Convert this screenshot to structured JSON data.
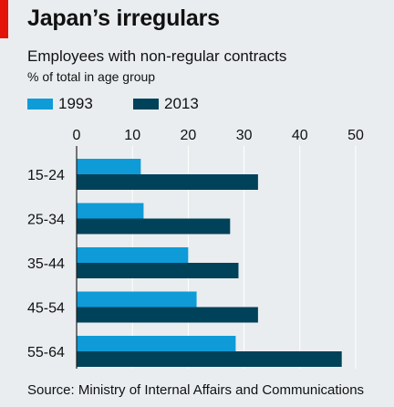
{
  "header": {
    "title": "Japan’s irregulars",
    "subtitle": "Employees with non-regular contracts",
    "unit": "% of total in age group"
  },
  "colors": {
    "accent_red": "#e3120b",
    "series_1993": "#0f9bd7",
    "series_2013": "#004259",
    "background": "#e9edf0",
    "gridline": "#ffffff"
  },
  "chart_data": {
    "type": "bar",
    "orientation": "horizontal",
    "categories": [
      "15-24",
      "25-34",
      "35-44",
      "45-54",
      "55-64"
    ],
    "series": [
      {
        "name": "1993",
        "color": "#0f9bd7",
        "values": [
          11.5,
          12.0,
          20.0,
          21.5,
          28.5
        ]
      },
      {
        "name": "2013",
        "color": "#004259",
        "values": [
          32.5,
          27.5,
          29.0,
          32.5,
          47.5
        ]
      }
    ],
    "xticks": [
      0,
      10,
      20,
      30,
      40,
      50
    ],
    "xlim": [
      0,
      50
    ],
    "grid": true,
    "legend_position": "top-left"
  },
  "footer": {
    "source": "Source: Ministry of Internal Affairs and Communications"
  }
}
